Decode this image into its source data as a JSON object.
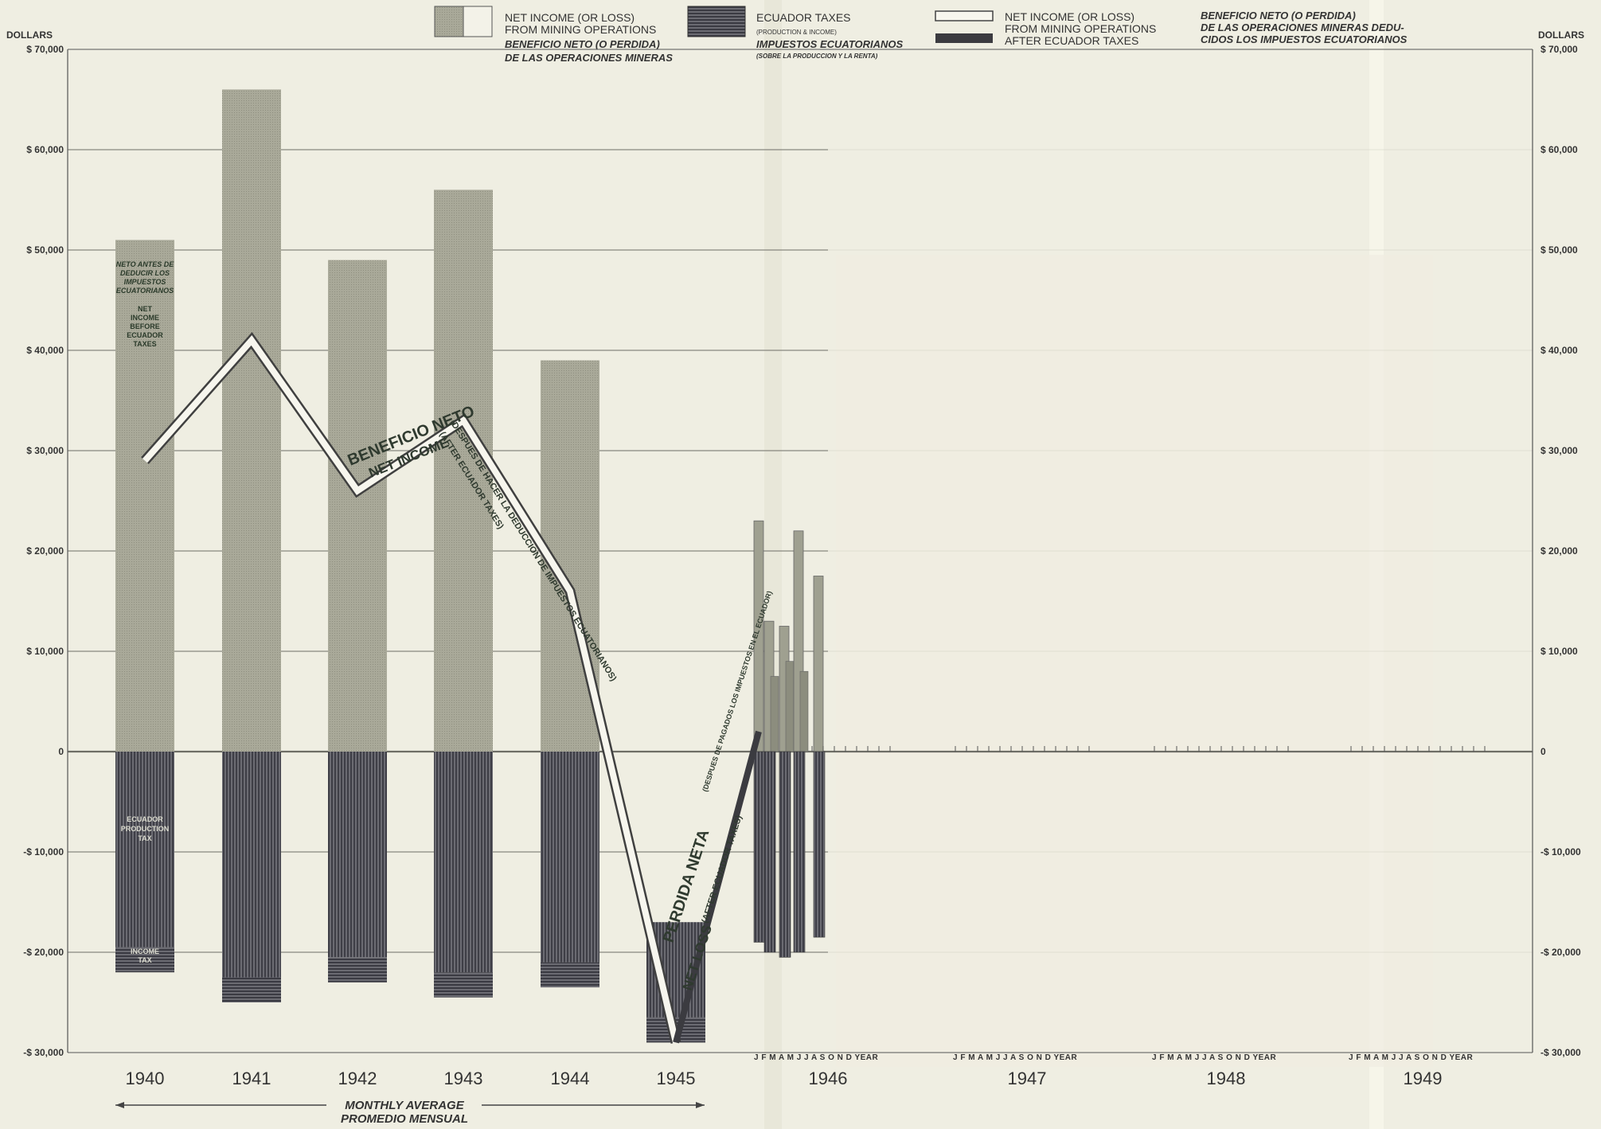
{
  "chart_data": {
    "type": "bar",
    "y_axis_title": "DOLLARS",
    "y_ticks": [
      {
        "value": 70000,
        "label": "$ 70,000"
      },
      {
        "value": 60000,
        "label": "$ 60,000"
      },
      {
        "value": 50000,
        "label": "$ 50,000"
      },
      {
        "value": 40000,
        "label": "$ 40,000"
      },
      {
        "value": 30000,
        "label": "$ 30,000"
      },
      {
        "value": 20000,
        "label": "$ 20,000"
      },
      {
        "value": 10000,
        "label": "$ 10,000"
      },
      {
        "value": 0,
        "label": "0"
      },
      {
        "value": -10000,
        "label": "-$ 10,000"
      },
      {
        "value": -20000,
        "label": "-$ 20,000"
      },
      {
        "value": -30000,
        "label": "-$ 30,000"
      }
    ],
    "ylim": [
      -30000,
      70000
    ],
    "categories": [
      "1940",
      "1941",
      "1942",
      "1943",
      "1944",
      "1945",
      "1946",
      "1947",
      "1948",
      "1949"
    ],
    "series": [
      {
        "name": "NET INCOME (OR LOSS) FROM MINING OPERATIONS",
        "values": [
          51000,
          66000,
          49000,
          56000,
          39000,
          -17000,
          null,
          null,
          null,
          null
        ]
      },
      {
        "name": "ECUADOR TAXES",
        "values": [
          -22000,
          -25000,
          -23000,
          -24500,
          -23500,
          -29000,
          null,
          null,
          null,
          null
        ]
      },
      {
        "name": "NET INCOME (OR LOSS) AFTER ECUADOR TAXES",
        "values": [
          29000,
          41000,
          26000,
          33000,
          16000,
          -29000,
          2000,
          null,
          null,
          null
        ]
      }
    ],
    "monthly_1946": {
      "months": [
        "J",
        "F",
        "M",
        "A",
        "M"
      ],
      "net_income": [
        23000,
        13000,
        12500,
        22000,
        17500
      ],
      "net_income_inner": [
        0,
        7500,
        9000,
        8000,
        0
      ],
      "ecuador_taxes": [
        -19000,
        -20000,
        -20500,
        -20000,
        -18500
      ],
      "after_tax": [
        -19000,
        5000,
        -20000,
        4000,
        -18000
      ]
    },
    "month_ticks_label": "J F M A M J J A S O N D YEAR",
    "x_note": "MONTHLY AVERAGE",
    "x_note_es": "PROMEDIO MENSUAL",
    "grid": true
  },
  "legend": {
    "item1": [
      "NET INCOME (OR LOSS)",
      "FROM MINING OPERATIONS",
      "BENEFICIO NETO (O PERDIDA)",
      "DE LAS OPERACIONES MINERAS"
    ],
    "item2": [
      "ECUADOR TAXES",
      "(PRODUCTION & INCOME)",
      "IMPUESTOS ECUATORIANOS",
      "(SOBRE LA PRODUCCION Y LA RENTA)"
    ],
    "item3": [
      "NET INCOME (OR LOSS)",
      "FROM MINING OPERATIONS",
      "AFTER ECUADOR TAXES"
    ],
    "item4": [
      "BENEFICIO NETO (O PERDIDA)",
      "DE LAS OPERACIONES MINERAS DEDU-",
      "CIDOS LOS IMPUESTOS ECUATORIANOS"
    ]
  },
  "annotations": {
    "bar1940_top": [
      "NETO ANTES DE",
      "DEDUCIR LOS",
      "IMPUESTOS",
      "ECUATORIANOS"
    ],
    "bar1940_mid": [
      "NET",
      "INCOME",
      "BEFORE",
      "ECUADOR",
      "TAXES"
    ],
    "bar1940_tax": [
      "ECUADOR",
      "PRODUCTION",
      "TAX"
    ],
    "bar1940_income_tax": [
      "INCOME",
      "TAX"
    ],
    "line_es": "BENEFICIO NETO",
    "line_en": "NET INCOME",
    "line_after": "(DESPUES DE HACER LA DEDUCCION DE IMPUESTOS ECUATORIANOS)",
    "line_after_en": "(AFTER ECUADOR TAXES)",
    "loss_es": "PERDIDA NETA",
    "loss_en": "NET LOSS",
    "loss_after_en": "(AFTER ECUADOR TAXES)",
    "loss_after_es": "(DESPUES DE PAGADOS LOS IMPUESTOS EN EL ECUADOR)"
  },
  "colors": {
    "background": "#efeee2",
    "bar_income": "#a7a797",
    "bar_tax": "#5e5e66",
    "grid": "#6e6e66"
  }
}
